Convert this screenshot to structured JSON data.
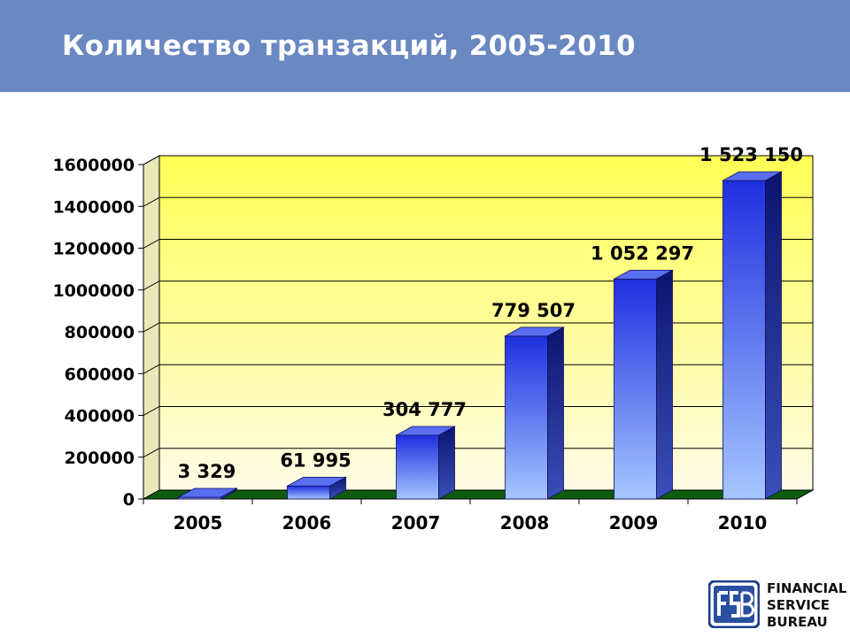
{
  "header": {
    "title": "Количество транзакций, 2005-2010"
  },
  "chart_data": {
    "type": "bar",
    "title": "",
    "xlabel": "",
    "ylabel": "",
    "categories": [
      "2005",
      "2006",
      "2007",
      "2008",
      "2009",
      "2010"
    ],
    "values": [
      3329,
      61995,
      304777,
      779507,
      1052297,
      1523150
    ],
    "data_labels": [
      "3 329",
      "61 995",
      "304 777",
      "779 507",
      "1 052 297",
      "1 523 150"
    ],
    "ylim": [
      0,
      1600000
    ],
    "yticks": [
      0,
      200000,
      400000,
      600000,
      800000,
      1000000,
      1200000,
      1400000,
      1600000
    ],
    "ytick_labels": [
      "0",
      "200000",
      "400000",
      "600000",
      "800000",
      "1000000",
      "1200000",
      "1400000",
      "1600000"
    ],
    "grid": true,
    "legend": "none",
    "style": "3d-column",
    "colors": {
      "bar_front_top": "#1f2fe0",
      "bar_front_bottom": "#a6c6ff",
      "bar_side": "#101b8c",
      "bar_top": "#5a6ef0",
      "floor": "#0f5b0f",
      "wall_top": "#ffff55",
      "wall_bottom": "#fffbe0"
    }
  },
  "logo": {
    "name": "financial-service-bureau-logo",
    "mark_text": "FSB",
    "lines": [
      "FINANCIAL",
      "SERVICE",
      "BUREAU"
    ]
  }
}
